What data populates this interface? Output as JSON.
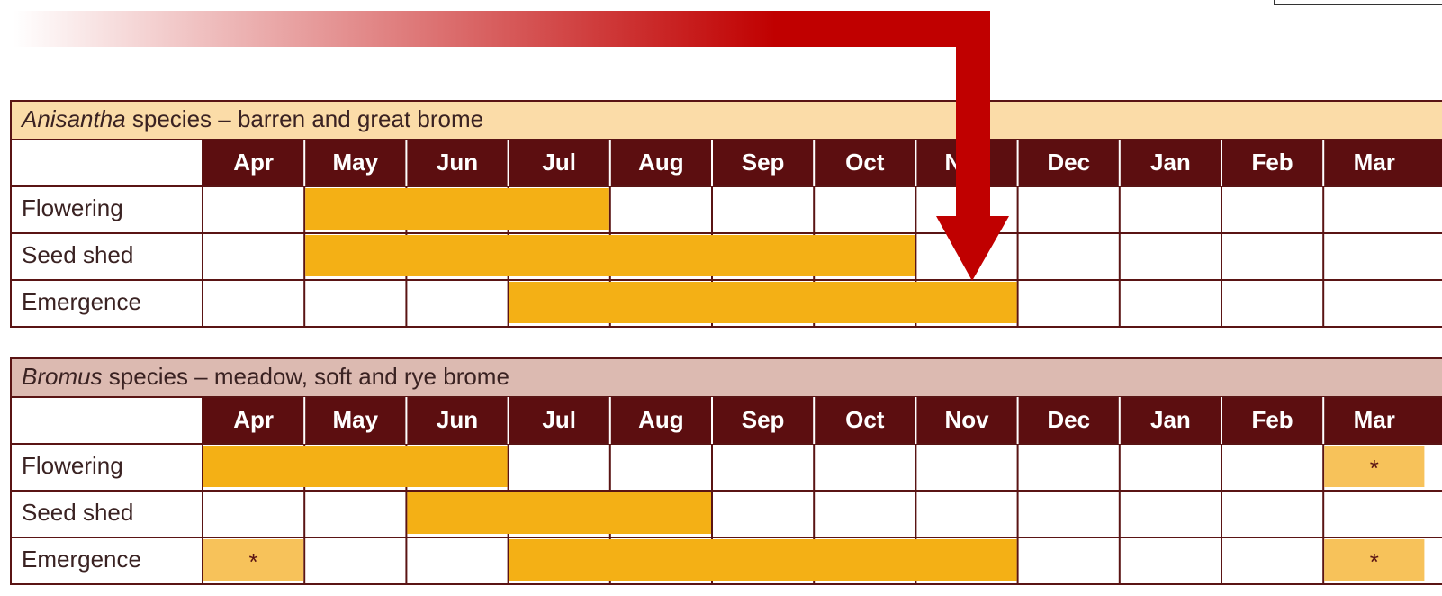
{
  "tables": [
    {
      "title": {
        "genus": "Anisantha",
        "rest": " species – barren and great brome"
      },
      "months": [
        "Apr",
        "May",
        "Jun",
        "Jul",
        "Aug",
        "Sep",
        "Oct",
        "Nov",
        "Dec",
        "Jan",
        "Feb",
        "Mar"
      ],
      "rows": [
        {
          "label": "Flowering",
          "bars": [
            {
              "from": "May",
              "to": "Jul"
            }
          ],
          "notes": []
        },
        {
          "label": "Seed shed",
          "bars": [
            {
              "from": "May",
              "to": "Oct"
            }
          ],
          "notes": []
        },
        {
          "label": "Emergence",
          "bars": [
            {
              "from": "Jul",
              "to": "Nov"
            }
          ],
          "notes": []
        }
      ]
    },
    {
      "title": {
        "genus": "Bromus",
        "rest": " species – meadow, soft and rye brome"
      },
      "months": [
        "Apr",
        "May",
        "Jun",
        "Jul",
        "Aug",
        "Sep",
        "Oct",
        "Nov",
        "Dec",
        "Jan",
        "Feb",
        "Mar"
      ],
      "rows": [
        {
          "label": "Flowering",
          "bars": [
            {
              "from": "Apr",
              "to": "Jun"
            }
          ],
          "notes": [
            {
              "month": "Mar",
              "label": "*"
            }
          ]
        },
        {
          "label": "Seed shed",
          "bars": [
            {
              "from": "Jun",
              "to": "Aug"
            }
          ],
          "notes": []
        },
        {
          "label": "Emergence",
          "bars": [
            {
              "from": "Jul",
              "to": "Nov"
            }
          ],
          "notes": [
            {
              "month": "Apr",
              "label": "*"
            },
            {
              "month": "Mar",
              "label": "*"
            }
          ]
        }
      ]
    }
  ]
}
